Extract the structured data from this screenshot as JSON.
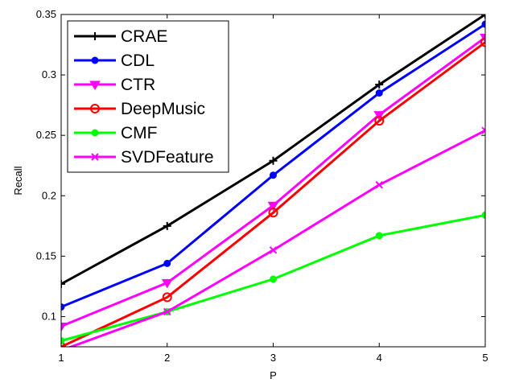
{
  "chart_data": {
    "type": "line",
    "title": "",
    "xlabel": "P",
    "ylabel": "Recall",
    "x": [
      1,
      2,
      3,
      4,
      5
    ],
    "xlim": [
      1,
      5
    ],
    "ylim": [
      0.075,
      0.35
    ],
    "xticks": [
      "1",
      "2",
      "3",
      "4",
      "5"
    ],
    "yticks": [
      "0.1",
      "0.15",
      "0.2",
      "0.25",
      "0.3",
      "0.35"
    ],
    "grid": false,
    "legend_position": "top-left",
    "series": [
      {
        "name": "CRAE",
        "color": "#000000",
        "marker": "plus",
        "values": [
          0.127,
          0.175,
          0.229,
          0.292,
          0.35
        ]
      },
      {
        "name": "CDL",
        "color": "#0000ff",
        "marker": "filled-circle",
        "values": [
          0.108,
          0.144,
          0.217,
          0.285,
          0.342
        ]
      },
      {
        "name": "CTR",
        "color": "#ff00ff",
        "marker": "down-triangle",
        "values": [
          0.092,
          0.128,
          0.192,
          0.267,
          0.331
        ]
      },
      {
        "name": "DeepMusic",
        "color": "#ff0000",
        "marker": "open-circle",
        "values": [
          0.075,
          0.116,
          0.186,
          0.262,
          0.327
        ]
      },
      {
        "name": "CMF",
        "color": "#00ff00",
        "marker": "filled-circle",
        "values": [
          0.08,
          0.104,
          0.131,
          0.167,
          0.184
        ]
      },
      {
        "name": "SVDFeature",
        "color": "#ff00ff",
        "marker": "x",
        "values": [
          0.072,
          0.104,
          0.155,
          0.209,
          0.254
        ]
      }
    ]
  }
}
